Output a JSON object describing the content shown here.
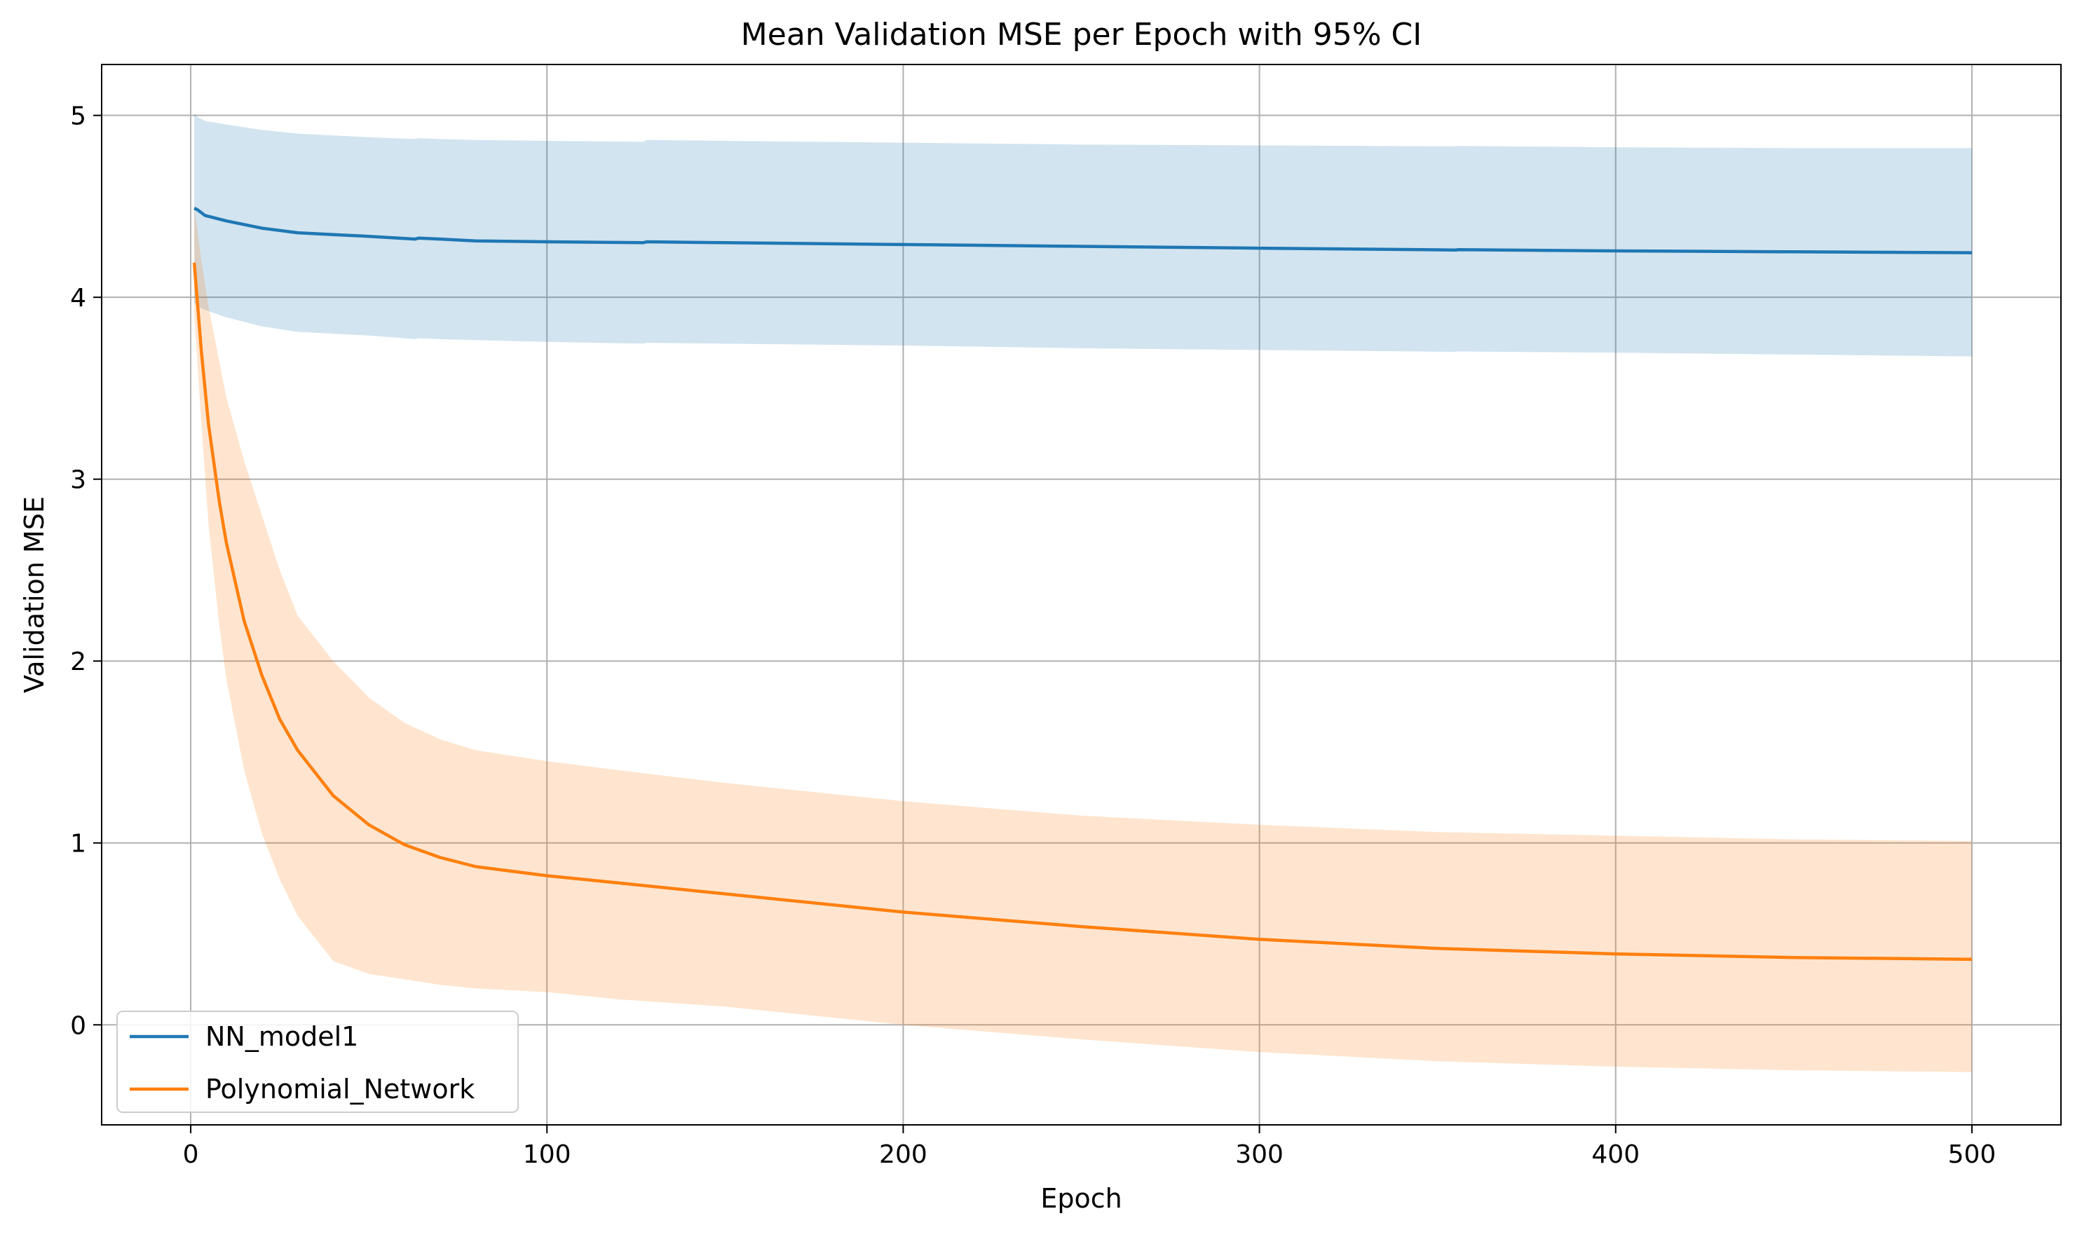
{
  "chart_data": {
    "type": "line",
    "title": "Mean Validation MSE per Epoch with 95% CI",
    "xlabel": "Epoch",
    "ylabel": "Validation MSE",
    "xlim": [
      -25,
      525
    ],
    "ylim": [
      -0.55,
      5.28
    ],
    "xticks": [
      0,
      100,
      200,
      300,
      400,
      500
    ],
    "yticks": [
      0,
      1,
      2,
      3,
      4,
      5
    ],
    "grid": true,
    "legend_position": "lower-left",
    "series": [
      {
        "name": "NN_model1",
        "color": "#1f77b4",
        "band_color": "#1f77b4",
        "band_opacity": 0.2,
        "x": [
          1,
          2,
          4,
          10,
          20,
          30,
          40,
          50,
          63,
          64,
          70,
          80,
          100,
          127,
          128,
          150,
          200,
          250,
          300,
          355,
          356,
          400,
          450,
          500
        ],
        "mean": [
          4.49,
          4.48,
          4.45,
          4.42,
          4.38,
          4.355,
          4.345,
          4.335,
          4.32,
          4.325,
          4.32,
          4.31,
          4.305,
          4.3,
          4.305,
          4.3,
          4.29,
          4.28,
          4.27,
          4.26,
          4.262,
          4.255,
          4.25,
          4.245
        ],
        "upper": [
          5.01,
          4.99,
          4.97,
          4.95,
          4.92,
          4.9,
          4.89,
          4.88,
          4.87,
          4.875,
          4.87,
          4.865,
          4.86,
          4.855,
          4.865,
          4.86,
          4.85,
          4.84,
          4.835,
          4.83,
          4.832,
          4.825,
          4.82,
          4.82
        ],
        "lower": [
          3.97,
          3.95,
          3.93,
          3.89,
          3.84,
          3.81,
          3.8,
          3.79,
          3.77,
          3.775,
          3.77,
          3.765,
          3.755,
          3.745,
          3.75,
          3.745,
          3.735,
          3.72,
          3.71,
          3.7,
          3.702,
          3.695,
          3.685,
          3.675
        ]
      },
      {
        "name": "Polynomial_Network",
        "color": "#ff7f0e",
        "band_color": "#ff7f0e",
        "band_opacity": 0.2,
        "x": [
          1,
          3,
          5,
          8,
          10,
          15,
          20,
          25,
          30,
          40,
          50,
          60,
          70,
          80,
          100,
          120,
          150,
          200,
          250,
          300,
          350,
          400,
          450,
          500
        ],
        "mean": [
          4.19,
          3.7,
          3.3,
          2.88,
          2.65,
          2.22,
          1.92,
          1.68,
          1.51,
          1.26,
          1.1,
          0.99,
          0.92,
          0.87,
          0.82,
          0.78,
          0.72,
          0.62,
          0.54,
          0.47,
          0.42,
          0.39,
          0.37,
          0.36
        ],
        "upper": [
          4.5,
          4.2,
          3.95,
          3.65,
          3.45,
          3.1,
          2.8,
          2.5,
          2.25,
          2.0,
          1.8,
          1.66,
          1.57,
          1.51,
          1.45,
          1.4,
          1.33,
          1.23,
          1.15,
          1.1,
          1.06,
          1.04,
          1.02,
          1.01
        ],
        "lower": [
          3.9,
          3.3,
          2.75,
          2.2,
          1.9,
          1.4,
          1.05,
          0.8,
          0.6,
          0.35,
          0.28,
          0.25,
          0.22,
          0.2,
          0.18,
          0.14,
          0.1,
          0.0,
          -0.08,
          -0.15,
          -0.2,
          -0.23,
          -0.25,
          -0.26
        ]
      }
    ]
  }
}
